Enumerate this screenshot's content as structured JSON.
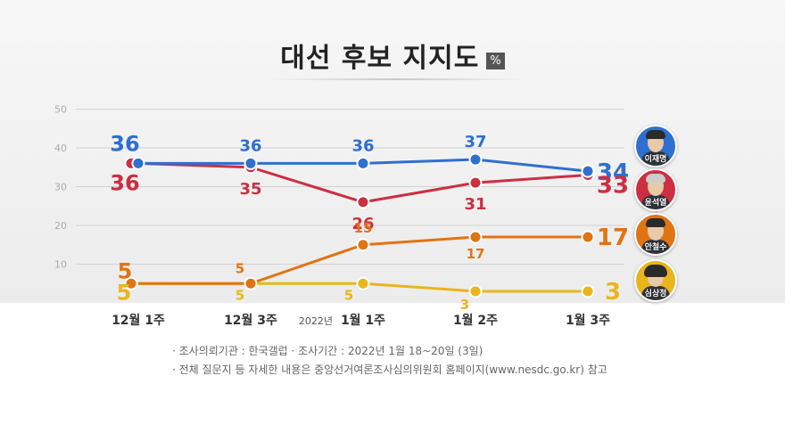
{
  "title": "대선 후보 지지도",
  "unit_badge": "%",
  "notes": {
    "line1": "· 조사의뢰기관 : 한국갤럽      · 조사기간 : 2022년 1월 18~20일 (3일)",
    "line2": "· 전체 질문지 등 자세한 내용은 중앙선거여론조사심의위원회 홈페이지(www.nesdc.go.kr) 참고"
  },
  "chart_data": {
    "type": "line",
    "categories": [
      "12월 1주",
      "12월 3주",
      "1월 1주",
      "1월 2주",
      "1월 3주"
    ],
    "category_prefix": {
      "index": 2,
      "text": "2022년"
    },
    "yticks": [
      10,
      20,
      30,
      40,
      50
    ],
    "ylim": [
      0,
      50
    ],
    "grid": true,
    "series": [
      {
        "name": "이재명",
        "color": "#2f6fd0",
        "values": [
          36,
          36,
          36,
          37,
          34
        ]
      },
      {
        "name": "윤석열",
        "color": "#cc2f42",
        "values": [
          36,
          35,
          26,
          31,
          33
        ]
      },
      {
        "name": "안철수",
        "color": "#e07415",
        "values": [
          5,
          5,
          15,
          17,
          17
        ]
      },
      {
        "name": "심상정",
        "color": "#e8b61c",
        "values": [
          5,
          5,
          5,
          3,
          3
        ]
      }
    ]
  }
}
